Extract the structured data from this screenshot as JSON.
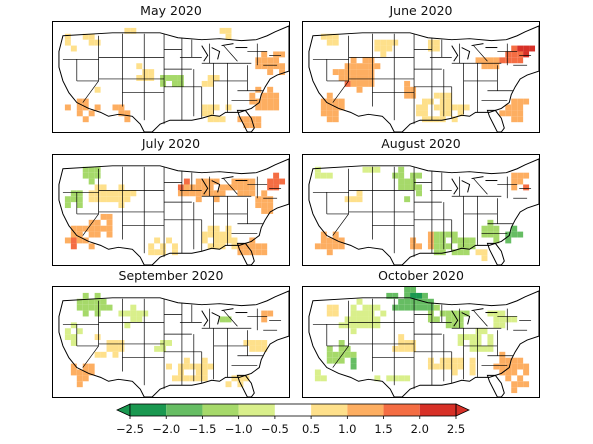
{
  "panels": [
    {
      "title": "May 2020",
      "pattern": "may"
    },
    {
      "title": "June 2020",
      "pattern": "june"
    },
    {
      "title": "July 2020",
      "pattern": "july"
    },
    {
      "title": "August 2020",
      "pattern": "august"
    },
    {
      "title": "September 2020",
      "pattern": "september"
    },
    {
      "title": "October 2020",
      "pattern": "october"
    }
  ],
  "colorbar": {
    "ticks": [
      "−2.5",
      "−2.0",
      "−1.5",
      "−1.0",
      "−0.5",
      "0.5",
      "1.0",
      "1.5",
      "2.0",
      "2.5"
    ],
    "colors": [
      "#1a9850",
      "#66bd63",
      "#a6d96a",
      "#d9ef8b",
      "#ffffff",
      "#fee08b",
      "#fdae61",
      "#f46d43",
      "#d73027"
    ],
    "extend_low_color": "#1a9850",
    "extend_high_color": "#d73027"
  }
}
